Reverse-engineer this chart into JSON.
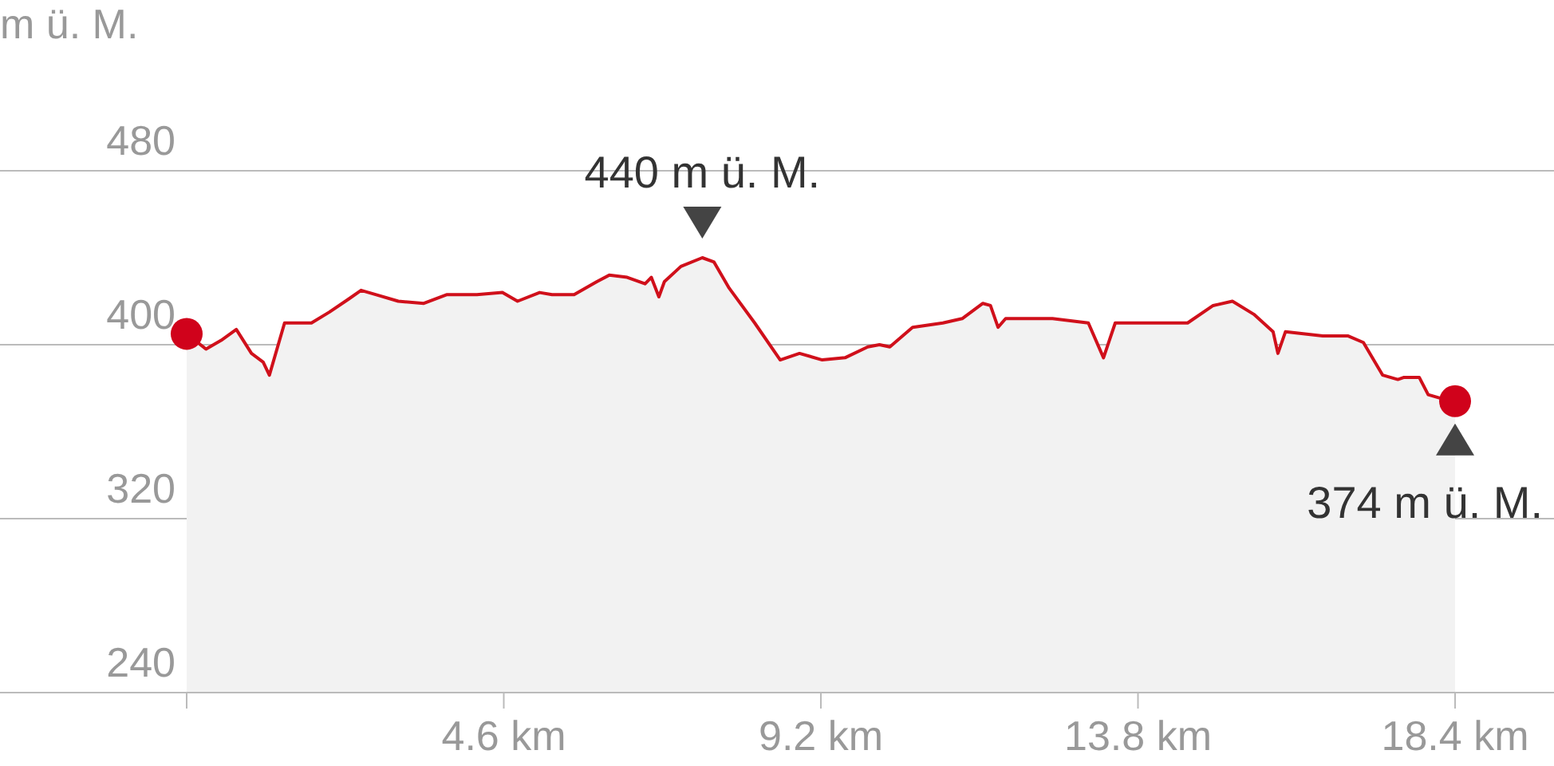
{
  "chart_data": {
    "type": "area",
    "ylabel": "m ü. M.",
    "xlim": [
      0,
      18.4
    ],
    "ylim": [
      240,
      480
    ],
    "xticks": [
      {
        "value": 0,
        "label": null
      },
      {
        "value": 4.6,
        "label": "4.6 km"
      },
      {
        "value": 9.2,
        "label": "9.2 km"
      },
      {
        "value": 13.8,
        "label": "13.8 km"
      },
      {
        "value": 18.4,
        "label": "18.4 km"
      }
    ],
    "yticks": [
      240,
      320,
      400,
      480
    ],
    "grid": "y",
    "series": [
      {
        "color": "#d0101b",
        "x": [
          0,
          0.28,
          0.5,
          0.72,
          0.94,
          1.11,
          1.2,
          1.42,
          1.81,
          2.07,
          2.35,
          2.53,
          2.75,
          3.07,
          3.44,
          3.77,
          4.21,
          4.58,
          4.8,
          5.12,
          5.3,
          5.62,
          5.95,
          6.13,
          6.39,
          6.65,
          6.74,
          6.85,
          6.93,
          7.17,
          7.48,
          7.65,
          7.87,
          8.24,
          8.61,
          8.89,
          9.22,
          9.55,
          9.88,
          10.05,
          10.2,
          10.53,
          10.97,
          11.25,
          11.55,
          11.66,
          11.77,
          11.88,
          12.56,
          13.08,
          13.3,
          13.47,
          14.02,
          14.52,
          14.89,
          15.17,
          15.48,
          15.76,
          15.83,
          15.94,
          16.48,
          16.85,
          17.07,
          17.35,
          17.57,
          17.66,
          17.88,
          18.01,
          18.23,
          18.4
        ],
        "values": [
          405,
          398,
          402,
          407,
          396,
          392,
          386,
          410,
          410,
          415,
          421,
          425,
          423,
          420,
          419,
          423,
          423,
          424,
          420,
          424,
          423,
          423,
          429,
          432,
          431,
          428,
          431,
          422,
          429,
          436,
          440,
          438,
          426,
          410,
          393,
          396,
          393,
          394,
          399,
          400,
          399,
          408,
          410,
          412,
          419,
          418,
          408,
          412,
          412,
          410,
          394,
          410,
          410,
          410,
          418,
          420,
          414,
          406,
          396,
          406,
          404,
          404,
          401,
          386,
          384,
          385,
          385,
          377,
          375,
          374
        ]
      },
      {
        "type": "scatter",
        "color": "#d0021b",
        "x": [
          0,
          18.4
        ],
        "values": [
          405,
          374
        ]
      }
    ],
    "annotations": [
      {
        "text": "440 m ü. M.",
        "x": 7.48,
        "y": 440
      },
      {
        "text": "374 m ü. M.",
        "x": 18.4,
        "y": 374
      }
    ]
  }
}
